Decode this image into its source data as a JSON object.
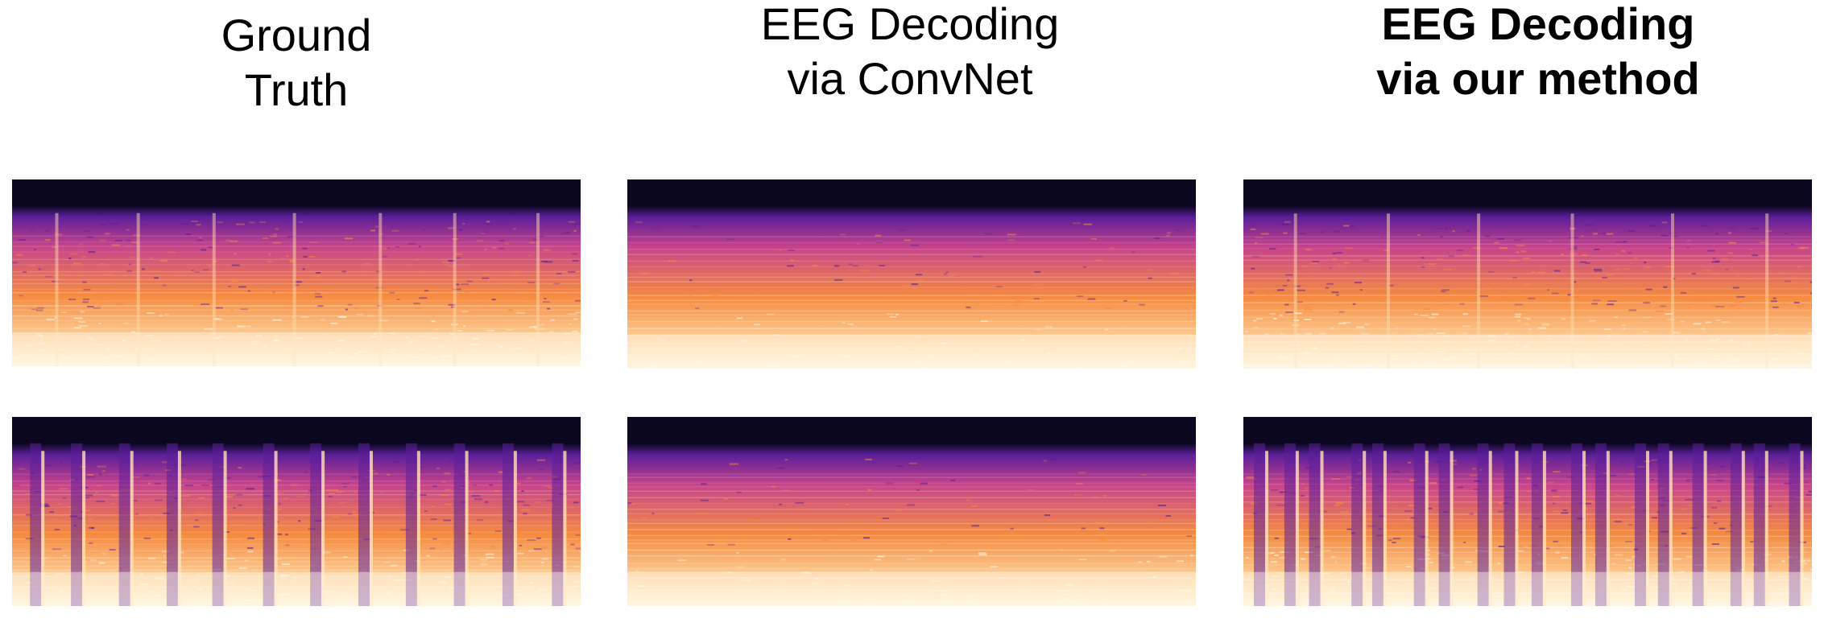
{
  "columns": [
    {
      "id": "ground-truth",
      "title_lines": [
        "Ground",
        "Truth"
      ],
      "bold": false
    },
    {
      "id": "convnet",
      "title_lines": [
        "EEG Decoding",
        "via ConvNet"
      ],
      "bold": false
    },
    {
      "id": "our-method",
      "title_lines": [
        "EEG Decoding",
        "via our method"
      ],
      "bold": true
    }
  ],
  "colormap": {
    "dark": "#0b0720",
    "purple": "#5b1f9a",
    "magenta": "#c8448a",
    "orange": "#f58a3f",
    "pale": "#fff4d6"
  },
  "panels": [
    {
      "id": "row1-ground-truth",
      "style": "speckled",
      "vertical_streaks": 7
    },
    {
      "id": "row1-convnet",
      "style": "smooth",
      "vertical_streaks": 0
    },
    {
      "id": "row1-our-method",
      "style": "speckled",
      "vertical_streaks": 6
    },
    {
      "id": "row2-ground-truth",
      "style": "beats",
      "vertical_streaks": 12
    },
    {
      "id": "row2-convnet",
      "style": "smooth",
      "vertical_streaks": 0
    },
    {
      "id": "row2-our-method",
      "style": "beats",
      "vertical_streaks": 18
    }
  ]
}
